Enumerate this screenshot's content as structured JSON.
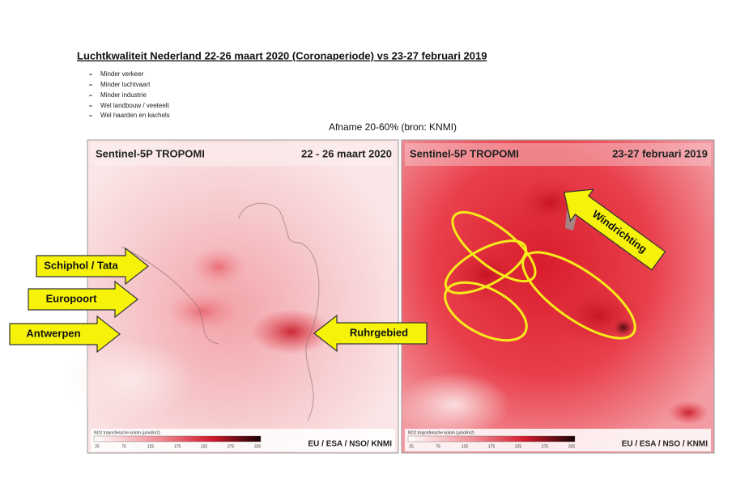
{
  "header": {
    "title": "Luchtkwaliteit Nederland 22-26 maart 2020 (Coronaperiode) vs 23-27 februari 2019",
    "bullets": [
      "Minder verkeer",
      "Minder luchtvaart",
      "Minder industrie",
      "Wel landbouw / veeteelt",
      "Wel haarden en kachels"
    ],
    "subtitle": "Afname 20-60% (bron: KNMI)"
  },
  "maps": [
    {
      "title": "Sentinel-5P TROPOMI",
      "date": "22 - 26 maart 2020",
      "credit": "EU / ESA / NSO/ KNMI",
      "legend_label": "NO2 troposferische kolom (µmol/m2)",
      "legend_ticks": [
        "25",
        "75",
        "125",
        "175",
        "225",
        "275",
        "325"
      ]
    },
    {
      "title": "Sentinel-5P TROPOMI",
      "date": "23-27 februari 2019",
      "credit": "EU / ESA / NSO / KNMI",
      "legend_label": "NO2 troposferische kolom (µmol/m2)",
      "legend_ticks": [
        "25",
        "75",
        "125",
        "175",
        "225",
        "275",
        "325"
      ]
    }
  ],
  "annotations": [
    "Schiphol / Tata",
    "Europoort",
    "Antwerpen",
    "Ruhrgebied",
    "Windrichting"
  ]
}
